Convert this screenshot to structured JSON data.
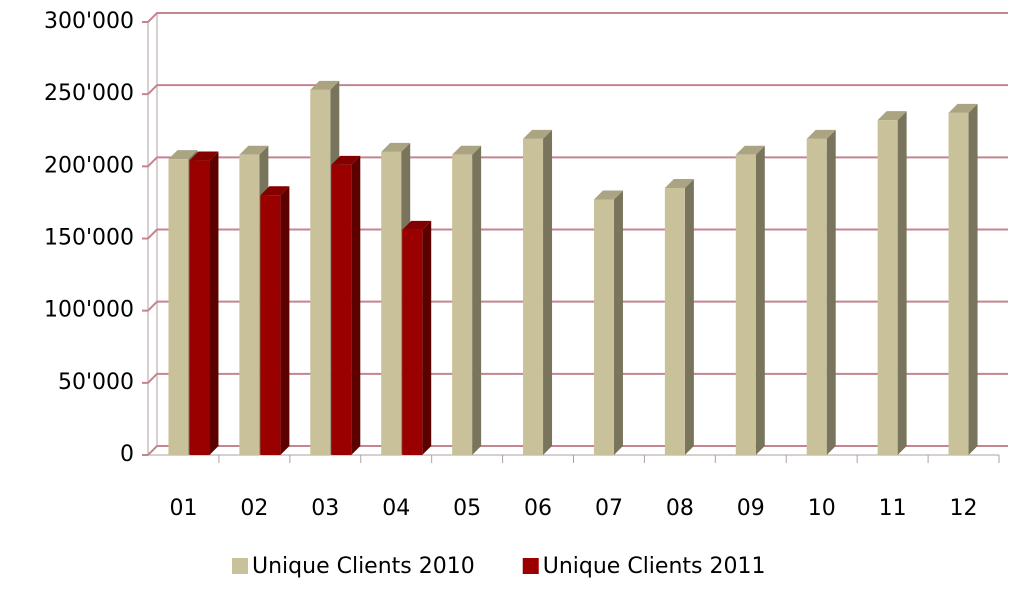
{
  "chart_data": {
    "type": "bar3d",
    "categories": [
      "01",
      "02",
      "03",
      "04",
      "05",
      "06",
      "07",
      "08",
      "09",
      "10",
      "11",
      "12"
    ],
    "series": [
      {
        "name": "Unique Clients 2010",
        "color": "#c9c19a",
        "values": [
          205000,
          208000,
          253000,
          210000,
          208000,
          219000,
          177000,
          185000,
          208000,
          219000,
          232000,
          237000
        ]
      },
      {
        "name": "Unique Clients 2011",
        "color": "#9b0000",
        "values": [
          204000,
          180000,
          201000,
          156000,
          null,
          null,
          null,
          null,
          null,
          null,
          null,
          null
        ]
      }
    ],
    "ylim": [
      0,
      300000
    ],
    "yticks": [
      0,
      {
        "value": 50000,
        "label": "50'000"
      },
      {
        "value": 100000,
        "label": "100'000"
      },
      {
        "value": 150000,
        "label": "150'000"
      },
      {
        "value": 200000,
        "label": "200'000"
      },
      {
        "value": 250000,
        "label": "250'000"
      },
      {
        "value": 300000,
        "label": "300'000"
      }
    ],
    "grid": true,
    "legend": "bottom"
  }
}
